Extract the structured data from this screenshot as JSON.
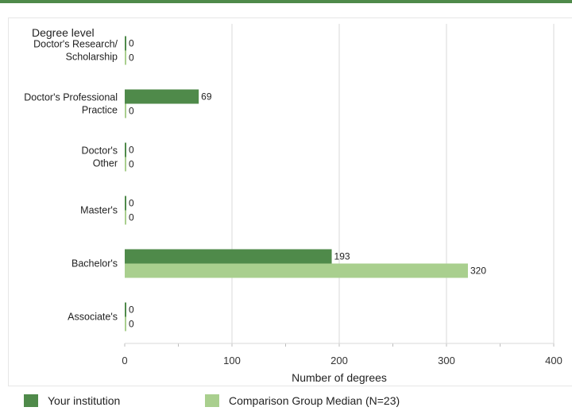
{
  "chart_data": {
    "type": "bar",
    "orientation": "horizontal",
    "category_axis_title": "Degree level",
    "xlabel": "Number of degrees",
    "xlim": [
      0,
      400
    ],
    "x_ticks": [
      0,
      100,
      200,
      300,
      400
    ],
    "grid": true,
    "legend_position": "bottom",
    "categories": [
      [
        "Doctor's Research/",
        "Scholarship"
      ],
      [
        "Doctor's Professional",
        "Practice"
      ],
      [
        "Doctor's",
        "Other"
      ],
      [
        "Master's"
      ],
      [
        "Bachelor's"
      ],
      [
        "Associate's"
      ]
    ],
    "series": [
      {
        "name": "Your institution",
        "color": "#4f8a4a",
        "values": [
          0,
          69,
          0,
          0,
          193,
          0
        ]
      },
      {
        "name": "Comparison Group Median (N=23)",
        "color": "#a9cf8e",
        "values": [
          0,
          0,
          0,
          0,
          320,
          0
        ]
      }
    ]
  }
}
